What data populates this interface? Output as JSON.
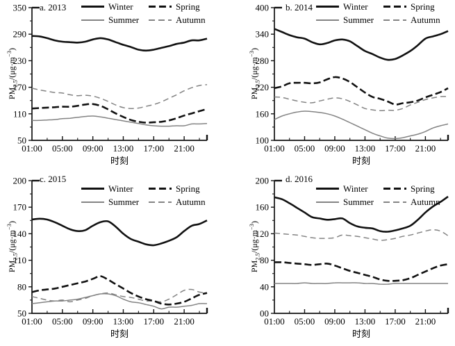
{
  "colors": {
    "black_line": "#111111",
    "gray_line": "#838383",
    "text": "#000000",
    "background": "#ffffff"
  },
  "chart_data": [
    {
      "type": "line",
      "title": "a. 2013",
      "xlabel": "时刻",
      "ylabel": "PM2.5/(μg·m−3)",
      "ylabel_parts": {
        "base": "PM",
        "sub": "2.5",
        "mid": "/(μg·m",
        "sup": "−3",
        "close": ")"
      },
      "ylim": [
        50,
        350
      ],
      "y_ticks": [
        50,
        110,
        170,
        230,
        290,
        350
      ],
      "y_tick_labels": [
        "50",
        "110",
        "170",
        "230",
        "290",
        "350"
      ],
      "x_range_hours": [
        1,
        24
      ],
      "x_tick_hours": [
        1,
        5,
        9,
        13,
        17,
        21
      ],
      "x_tick_labels": [
        "01:00",
        "05:00",
        "09:00",
        "13:00",
        "17:00",
        "21:00"
      ],
      "x_minor_tick_hours": [
        3,
        7,
        11,
        15,
        19,
        23
      ],
      "legend": [
        {
          "label": "Winter",
          "style": "black-solid"
        },
        {
          "label": "Spring",
          "style": "black-dashed"
        },
        {
          "label": "Summer",
          "style": "gray-solid"
        },
        {
          "label": "Autumn",
          "style": "gray-dashed"
        }
      ],
      "series": [
        {
          "name": "Winter",
          "style": "black-solid",
          "values": [
            286,
            285,
            281,
            276,
            273,
            272,
            271,
            273,
            278,
            281,
            278,
            272,
            266,
            261,
            255,
            253,
            255,
            259,
            263,
            268,
            271,
            276,
            276,
            280
          ]
        },
        {
          "name": "Spring",
          "style": "black-dashed",
          "values": [
            122,
            123,
            124,
            125,
            126,
            126,
            128,
            131,
            132,
            128,
            120,
            111,
            103,
            96,
            92,
            90,
            91,
            92,
            95,
            100,
            106,
            111,
            116,
            121
          ]
        },
        {
          "name": "Summer",
          "style": "gray-solid",
          "values": [
            95,
            95,
            96,
            97,
            99,
            100,
            102,
            104,
            105,
            103,
            100,
            97,
            94,
            91,
            88,
            85,
            83,
            82,
            82,
            83,
            83,
            87,
            87,
            88
          ]
        },
        {
          "name": "Autumn",
          "style": "gray-dashed",
          "values": [
            168,
            164,
            161,
            158,
            157,
            153,
            151,
            152,
            150,
            145,
            138,
            130,
            124,
            122,
            123,
            127,
            131,
            137,
            145,
            153,
            162,
            169,
            174,
            176
          ]
        }
      ]
    },
    {
      "type": "line",
      "title": "b. 2014",
      "xlabel": "时刻",
      "ylabel": "PM2.5/(μg·m−3)",
      "ylabel_parts": {
        "base": "PM",
        "sub": "2.5",
        "mid": "/(μg·m",
        "sup": "−3",
        "close": ")"
      },
      "ylim": [
        100,
        400
      ],
      "y_ticks": [
        100,
        160,
        220,
        280,
        340,
        400
      ],
      "y_tick_labels": [
        "100",
        "160",
        "220",
        "280",
        "340",
        "400"
      ],
      "x_range_hours": [
        1,
        24
      ],
      "x_tick_hours": [
        1,
        5,
        9,
        13,
        17,
        21
      ],
      "x_tick_labels": [
        "01:00",
        "05:00",
        "09:00",
        "13:00",
        "17:00",
        "21:00"
      ],
      "x_minor_tick_hours": [
        3,
        7,
        11,
        15,
        19,
        23
      ],
      "legend": [
        {
          "label": "Winter",
          "style": "black-solid"
        },
        {
          "label": "Spring",
          "style": "black-dashed"
        },
        {
          "label": "Summer",
          "style": "gray-solid"
        },
        {
          "label": "Autumn",
          "style": "gray-dashed"
        }
      ],
      "series": [
        {
          "name": "Winter",
          "style": "black-solid",
          "values": [
            352,
            345,
            338,
            333,
            330,
            322,
            317,
            320,
            326,
            328,
            324,
            313,
            302,
            295,
            287,
            282,
            284,
            292,
            302,
            315,
            330,
            335,
            340,
            347
          ]
        },
        {
          "name": "Spring",
          "style": "black-dashed",
          "values": [
            218,
            222,
            229,
            230,
            230,
            229,
            231,
            238,
            243,
            240,
            232,
            220,
            208,
            198,
            194,
            188,
            181,
            184,
            186,
            190,
            197,
            203,
            209,
            218
          ]
        },
        {
          "name": "Summer",
          "style": "gray-solid",
          "values": [
            147,
            155,
            160,
            164,
            166,
            165,
            163,
            160,
            155,
            148,
            140,
            132,
            124,
            116,
            110,
            105,
            104,
            106,
            110,
            114,
            120,
            128,
            133,
            137
          ]
        },
        {
          "name": "Autumn",
          "style": "gray-dashed",
          "values": [
            198,
            197,
            193,
            189,
            186,
            185,
            189,
            193,
            196,
            194,
            188,
            180,
            172,
            169,
            167,
            168,
            168,
            172,
            180,
            186,
            192,
            196,
            199,
            199
          ]
        }
      ]
    },
    {
      "type": "line",
      "title": "c. 2015",
      "xlabel": "时刻",
      "ylabel": "PM2.5/(μg·m−3)",
      "ylabel_parts": {
        "base": "PM",
        "sub": "2.5",
        "mid": "/(μg·m",
        "sup": "−3",
        "close": ")"
      },
      "ylim": [
        50,
        200
      ],
      "y_ticks": [
        50,
        80,
        110,
        140,
        170,
        200
      ],
      "y_tick_labels": [
        "50",
        "80",
        "110",
        "140",
        "170",
        "200"
      ],
      "x_range_hours": [
        1,
        24
      ],
      "x_tick_hours": [
        1,
        5,
        9,
        13,
        17,
        21
      ],
      "x_tick_labels": [
        "01:00",
        "05:00",
        "09:00",
        "13:00",
        "17:00",
        "21:00"
      ],
      "x_minor_tick_hours": [
        3,
        7,
        11,
        15,
        19,
        23
      ],
      "legend": [
        {
          "label": "Winter",
          "style": "black-solid"
        },
        {
          "label": "Spring",
          "style": "black-dashed"
        },
        {
          "label": "Summer",
          "style": "gray-solid"
        },
        {
          "label": "Autumn",
          "style": "gray-dashed"
        }
      ],
      "series": [
        {
          "name": "Winter",
          "style": "black-solid",
          "values": [
            156,
            157,
            156,
            153,
            149,
            145,
            143,
            144,
            149,
            153,
            154,
            148,
            140,
            134,
            131,
            128,
            127,
            129,
            132,
            136,
            143,
            149,
            151,
            155
          ]
        },
        {
          "name": "Spring",
          "style": "black-dashed",
          "values": [
            74,
            76,
            77,
            78,
            80,
            82,
            84,
            86,
            89,
            92,
            88,
            83,
            78,
            73,
            69,
            66,
            64,
            61,
            60,
            61,
            63,
            67,
            71,
            73
          ]
        },
        {
          "name": "Summer",
          "style": "gray-solid",
          "values": [
            61,
            62,
            63,
            64,
            64,
            65,
            66,
            68,
            70,
            72,
            72,
            70,
            66,
            63,
            62,
            60,
            58,
            55,
            57,
            57,
            58,
            59,
            61,
            61
          ]
        },
        {
          "name": "Autumn",
          "style": "gray-dashed",
          "values": [
            69,
            67,
            65,
            64,
            65,
            63,
            65,
            67,
            70,
            72,
            73,
            71,
            69,
            68,
            66,
            64,
            64,
            63,
            66,
            71,
            76,
            77,
            74,
            73
          ]
        }
      ]
    },
    {
      "type": "line",
      "title": "d. 2016",
      "xlabel": "时刻",
      "ylabel": "PM2.5/(μg·m−3)",
      "ylabel_parts": {
        "base": "PM",
        "sub": "2.5",
        "mid": "/(μg·m",
        "sup": "−3",
        "close": ")"
      },
      "ylim": [
        0,
        200
      ],
      "y_ticks": [
        0,
        40,
        80,
        120,
        160,
        200
      ],
      "y_tick_labels": [
        "00",
        "40",
        "80",
        "120",
        "160",
        "200"
      ],
      "x_range_hours": [
        1,
        24
      ],
      "x_tick_hours": [
        1,
        5,
        9,
        13,
        17,
        21
      ],
      "x_tick_labels": [
        "01:00",
        "05:00",
        "09:00",
        "13:00",
        "17:00",
        "21:00"
      ],
      "x_minor_tick_hours": [
        3,
        7,
        11,
        15,
        19,
        23
      ],
      "legend": [
        {
          "label": "Winter",
          "style": "black-solid"
        },
        {
          "label": "Spring",
          "style": "black-dashed"
        },
        {
          "label": "Summer",
          "style": "gray-solid"
        },
        {
          "label": "Autumn",
          "style": "gray-dashed"
        }
      ],
      "series": [
        {
          "name": "Winter",
          "style": "black-solid",
          "values": [
            175,
            172,
            166,
            159,
            152,
            145,
            143,
            141,
            142,
            143,
            136,
            131,
            129,
            128,
            124,
            123,
            125,
            128,
            132,
            141,
            152,
            161,
            168,
            176
          ]
        },
        {
          "name": "Spring",
          "style": "black-dashed",
          "values": [
            77,
            77,
            76,
            75,
            74,
            73,
            74,
            75,
            72,
            68,
            64,
            61,
            58,
            55,
            51,
            49,
            49,
            50,
            53,
            58,
            63,
            68,
            72,
            74
          ]
        },
        {
          "name": "Summer",
          "style": "gray-solid",
          "values": [
            45,
            45,
            45,
            45,
            46,
            45,
            45,
            45,
            46,
            46,
            46,
            46,
            45,
            45,
            44,
            44,
            45,
            45,
            45,
            45,
            45,
            45,
            45,
            45
          ]
        },
        {
          "name": "Autumn",
          "style": "gray-dashed",
          "values": [
            121,
            120,
            119,
            118,
            116,
            114,
            113,
            113,
            114,
            118,
            117,
            116,
            114,
            112,
            110,
            111,
            113,
            116,
            118,
            121,
            124,
            126,
            124,
            117
          ]
        }
      ]
    }
  ]
}
